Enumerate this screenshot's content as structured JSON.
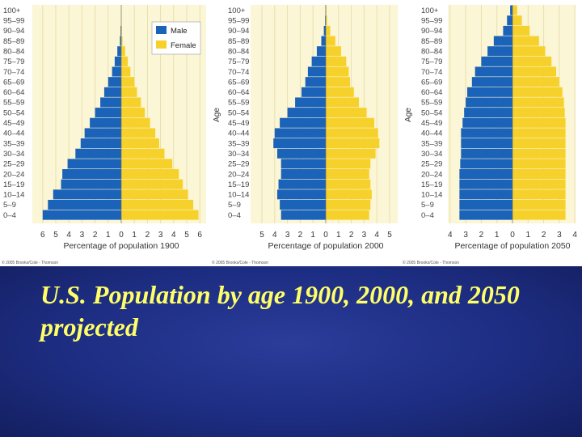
{
  "caption": "U.S. Population by age 1900, 2000, and 2050 projected",
  "age_groups": [
    "100+",
    "95–99",
    "90–94",
    "85–89",
    "80–84",
    "75–79",
    "70–74",
    "65–69",
    "60–64",
    "55–59",
    "50–54",
    "45–49",
    "40–44",
    "35–39",
    "30–34",
    "25–29",
    "20–24",
    "15–19",
    "10–14",
    "5–9",
    "0–4"
  ],
  "legend": {
    "male": "Male",
    "female": "Female"
  },
  "colors": {
    "male": "#1b63b8",
    "female": "#f7d12b",
    "plot_bg": "#fbf6d6",
    "grid": "#e9dfae"
  },
  "credit": "© 2005 Brooks/Cole - Thomson",
  "chart_data": [
    {
      "type": "bar",
      "orientation": "population-pyramid",
      "year": "1900",
      "xlabel": "Percentage of population 1900",
      "ylabel": "",
      "xticks": [
        "6",
        "5",
        "4",
        "3",
        "2",
        "1",
        "0",
        "1",
        "2",
        "3",
        "4",
        "5",
        "6"
      ],
      "xlim": [
        -6.5,
        6.5
      ],
      "series": [
        {
          "name": "Male",
          "values": [
            0,
            0,
            0.05,
            0.1,
            0.3,
            0.5,
            0.7,
            1.0,
            1.3,
            1.6,
            2.0,
            2.4,
            2.8,
            3.1,
            3.5,
            4.1,
            4.5,
            4.6,
            5.2,
            5.6,
            6.0
          ]
        },
        {
          "name": "Female",
          "values": [
            0,
            0,
            0.05,
            0.1,
            0.3,
            0.5,
            0.7,
            1.0,
            1.2,
            1.5,
            1.8,
            2.2,
            2.6,
            2.9,
            3.3,
            3.9,
            4.4,
            4.7,
            5.1,
            5.5,
            5.9
          ]
        }
      ]
    },
    {
      "type": "bar",
      "orientation": "population-pyramid",
      "year": "2000",
      "xlabel": "Percentage of population 2000",
      "ylabel": "Age",
      "xticks": [
        "5",
        "4",
        "3",
        "2",
        "1",
        "0",
        "1",
        "2",
        "3",
        "4",
        "5"
      ],
      "xlim": [
        -5.3,
        5.3
      ],
      "series": [
        {
          "name": "Male",
          "values": [
            0.02,
            0.05,
            0.15,
            0.35,
            0.7,
            1.1,
            1.4,
            1.6,
            1.9,
            2.4,
            3.0,
            3.6,
            4.0,
            4.1,
            3.8,
            3.5,
            3.5,
            3.7,
            3.8,
            3.6,
            3.5
          ]
        },
        {
          "name": "Female",
          "values": [
            0.05,
            0.1,
            0.35,
            0.75,
            1.2,
            1.6,
            1.8,
            1.9,
            2.2,
            2.6,
            3.2,
            3.8,
            4.1,
            4.2,
            3.9,
            3.5,
            3.4,
            3.5,
            3.6,
            3.5,
            3.4
          ]
        }
      ]
    },
    {
      "type": "bar",
      "orientation": "population-pyramid",
      "year": "2050",
      "xlabel": "Percentage of population 2050",
      "ylabel": "Age",
      "xticks": [
        "4",
        "3",
        "2",
        "1",
        "0",
        "1",
        "2",
        "3",
        "4"
      ],
      "xlim": [
        -4.5,
        4.5
      ],
      "series": [
        {
          "name": "Male",
          "values": [
            0.15,
            0.35,
            0.6,
            1.2,
            1.6,
            2.0,
            2.4,
            2.6,
            2.9,
            3.0,
            3.1,
            3.2,
            3.3,
            3.3,
            3.3,
            3.35,
            3.4,
            3.4,
            3.4,
            3.4,
            3.4
          ]
        },
        {
          "name": "Female",
          "values": [
            0.3,
            0.6,
            1.1,
            1.7,
            2.1,
            2.5,
            2.8,
            3.0,
            3.2,
            3.3,
            3.35,
            3.4,
            3.4,
            3.4,
            3.4,
            3.4,
            3.4,
            3.4,
            3.4,
            3.4,
            3.4
          ]
        }
      ]
    }
  ]
}
